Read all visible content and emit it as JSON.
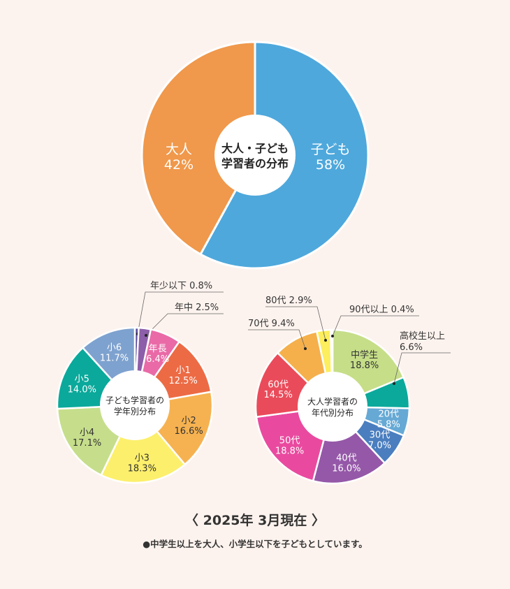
{
  "chart_data": [
    {
      "type": "pie",
      "title": "大人・子ども学習者の分布",
      "title_lines": [
        "大人・子ども",
        "学習者の分布"
      ],
      "unit": "%",
      "slices": [
        {
          "label": "子ども",
          "value": 58,
          "value_label": "58%",
          "color": "#4ea8dc"
        },
        {
          "label": "大人",
          "value": 42,
          "value_label": "42%",
          "color": "#f0984b"
        }
      ]
    },
    {
      "type": "pie",
      "title": "子ども学習者の学年別分布",
      "title_lines": [
        "子ども学習者の",
        "学年別分布"
      ],
      "unit": "%",
      "slices": [
        {
          "label": "年少以下",
          "value": 0.8,
          "value_label": "0.8%",
          "color": "#5a4a9c"
        },
        {
          "label": "年中",
          "value": 2.5,
          "value_label": "2.5%",
          "color": "#8d5ea9"
        },
        {
          "label": "年長",
          "value": 6.4,
          "value_label": "6.4%",
          "color": "#e96aa7"
        },
        {
          "label": "小1",
          "value": 12.5,
          "value_label": "12.5%",
          "color": "#ec6b45"
        },
        {
          "label": "小2",
          "value": 16.6,
          "value_label": "16.6%",
          "color": "#f6b251"
        },
        {
          "label": "小3",
          "value": 18.3,
          "value_label": "18.3%",
          "color": "#fcef6c"
        },
        {
          "label": "小4",
          "value": 17.1,
          "value_label": "17.1%",
          "color": "#c6de8b"
        },
        {
          "label": "小5",
          "value": 14.0,
          "value_label": "14.0%",
          "color": "#0aa99b"
        },
        {
          "label": "小6",
          "value": 11.7,
          "value_label": "11.7%",
          "color": "#7ea2cf"
        }
      ]
    },
    {
      "type": "pie",
      "title": "大人学習者の年代別分布",
      "title_lines": [
        "大人学習者の",
        "年代別分布"
      ],
      "unit": "%",
      "slices": [
        {
          "label": "中学生",
          "value": 18.8,
          "value_label": "18.8%",
          "color": "#c6de88"
        },
        {
          "label": "高校生以上",
          "value": 6.6,
          "value_label": "6.6%",
          "color": "#0aa99b"
        },
        {
          "label": "20代",
          "value": 5.8,
          "value_label": "5.8%",
          "color": "#66a9d5"
        },
        {
          "label": "30代",
          "value": 7.0,
          "value_label": "7.0%",
          "color": "#4a7ebf"
        },
        {
          "label": "40代",
          "value": 16.0,
          "value_label": "16.0%",
          "color": "#9558a8"
        },
        {
          "label": "50代",
          "value": 18.8,
          "value_label": "18.8%",
          "color": "#e94a9f"
        },
        {
          "label": "60代",
          "value": 14.5,
          "value_label": "14.5%",
          "color": "#ea4b5a"
        },
        {
          "label": "70代",
          "value": 9.4,
          "value_label": "9.4%",
          "color": "#f5b04c"
        },
        {
          "label": "80代",
          "value": 2.9,
          "value_label": "2.9%",
          "color": "#fcee5c"
        },
        {
          "label": "90代以上",
          "value": 0.4,
          "value_label": "0.4%",
          "color": "#f2f2f2"
        }
      ]
    }
  ],
  "footer": {
    "as_of": "〈 2025年 3月現在 〉",
    "note": "●中学生以上を大人、小学生以下を子どもとしています。"
  }
}
